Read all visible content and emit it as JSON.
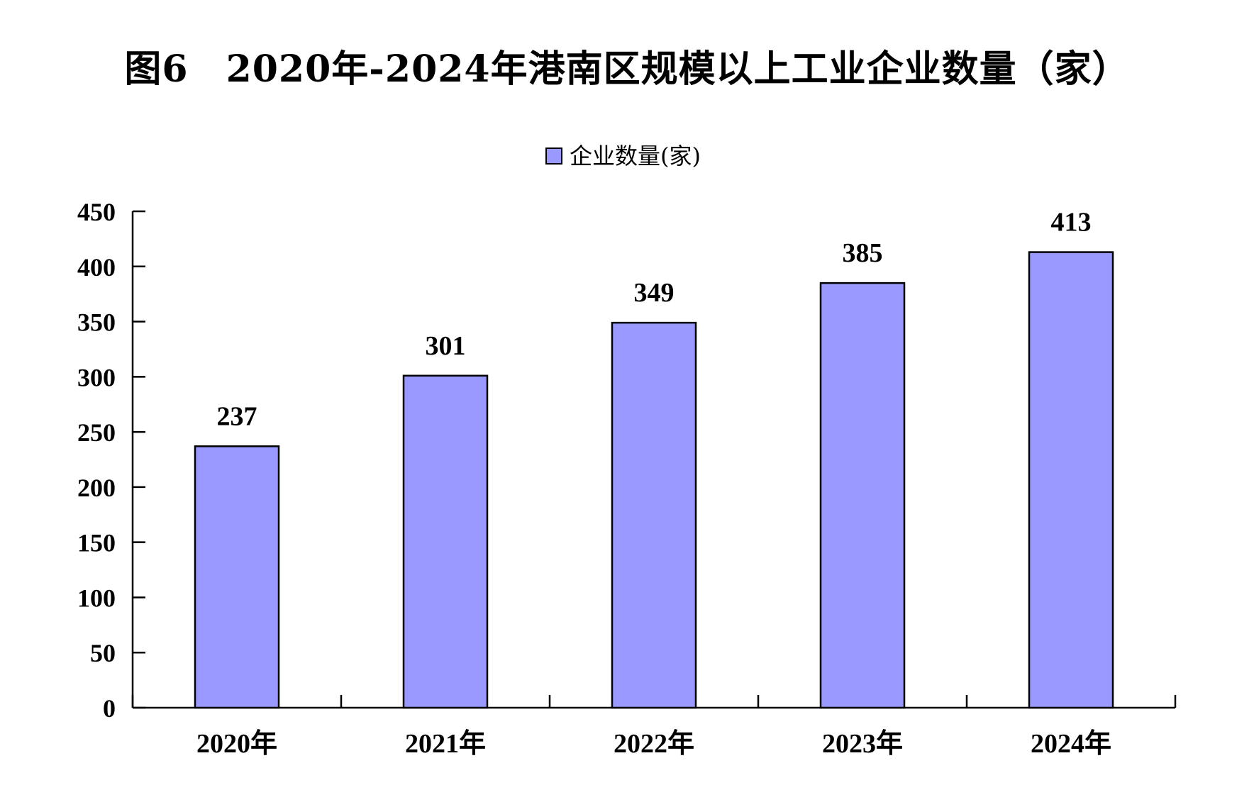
{
  "chart_data": {
    "type": "bar",
    "title": "图6　2020年-2024年港南区规模以上工业企业数量（家）",
    "categories": [
      "2020年",
      "2021年",
      "2022年",
      "2023年",
      "2024年"
    ],
    "series": [
      {
        "name": "企业数量(家)",
        "values": [
          237,
          301,
          349,
          385,
          413
        ],
        "color": "#9999ff"
      }
    ],
    "ylim": [
      0,
      450
    ],
    "yticks": [
      0,
      50,
      100,
      150,
      200,
      250,
      300,
      350,
      400,
      450
    ],
    "xlabel": "",
    "ylabel": "",
    "legend": "top-center",
    "grid": false,
    "data_labels": true
  }
}
